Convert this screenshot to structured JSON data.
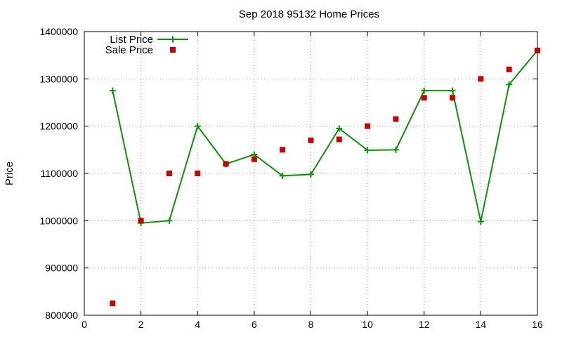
{
  "chart_data": {
    "type": "line",
    "title": "Sep 2018 95132 Home Prices",
    "xlabel": "",
    "ylabel": "Price",
    "xlim": [
      0,
      16
    ],
    "ylim": [
      800000,
      1400000
    ],
    "xticks": [
      0,
      2,
      4,
      6,
      8,
      10,
      12,
      14,
      16
    ],
    "yticks": [
      800000,
      900000,
      1000000,
      1100000,
      1200000,
      1300000,
      1400000
    ],
    "grid": true,
    "legend_position": "top-left",
    "series": [
      {
        "name": "List Price",
        "style": "line-plus",
        "color": "#009900",
        "x": [
          1,
          2,
          3,
          4,
          5,
          6,
          7,
          8,
          9,
          10,
          11,
          12,
          13,
          14,
          15,
          16
        ],
        "y": [
          1275000,
          995000,
          1000000,
          1200000,
          1120000,
          1140000,
          1095000,
          1098000,
          1195000,
          1149000,
          1150000,
          1275000,
          1275000,
          998000,
          1288000,
          1360000
        ]
      },
      {
        "name": "Sale Price",
        "style": "square",
        "color": "#cc0000",
        "x": [
          1,
          2,
          3,
          4,
          5,
          6,
          7,
          8,
          9,
          10,
          11,
          12,
          13,
          14,
          15,
          16
        ],
        "y": [
          825000,
          1000000,
          1100000,
          1100000,
          1120000,
          1130000,
          1150000,
          1170000,
          1172000,
          1200000,
          1215000,
          1260000,
          1260000,
          1300000,
          1320000,
          1360000
        ]
      }
    ]
  }
}
